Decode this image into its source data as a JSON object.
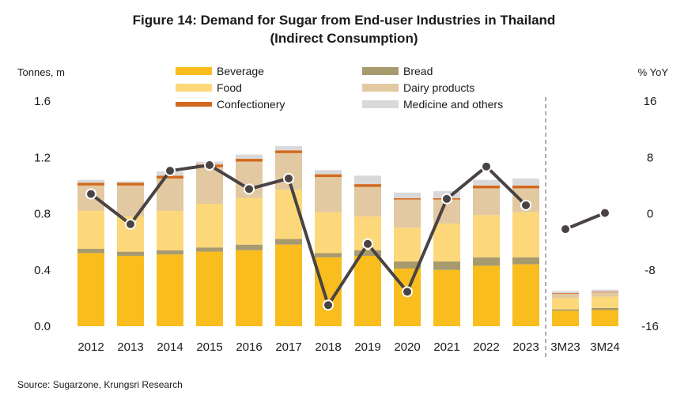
{
  "figure": {
    "title_line1": "Figure 14: Demand for Sugar from End-user Industries in Thailand",
    "title_line2": "(Indirect Consumption)",
    "source": "Source: Sugarzone, Krungsri Research"
  },
  "chart_data": {
    "type": "bar",
    "stacked": true,
    "categories": [
      "2012",
      "2013",
      "2014",
      "2015",
      "2016",
      "2017",
      "2018",
      "2019",
      "2020",
      "2021",
      "2022",
      "2023",
      "3M23",
      "3M24"
    ],
    "ylabel_left": "Tonnes, m",
    "ylabel_right": "% YoY",
    "ylim_left": [
      0,
      1.6
    ],
    "yticks_left": [
      "0.0",
      "0.4",
      "0.8",
      "1.2",
      "1.6"
    ],
    "ylim_right": [
      -16,
      16
    ],
    "yticks_right": [
      "-16",
      "-8",
      "0",
      "8",
      "16"
    ],
    "legend_placement": "top",
    "series": [
      {
        "name": "Beverage",
        "color": "#F9BE1E",
        "values": [
          0.52,
          0.5,
          0.51,
          0.53,
          0.54,
          0.58,
          0.49,
          0.5,
          0.41,
          0.4,
          0.43,
          0.44,
          0.11,
          0.115
        ]
      },
      {
        "name": "Bread",
        "color": "#A69A6E",
        "values": [
          0.03,
          0.03,
          0.03,
          0.03,
          0.04,
          0.04,
          0.03,
          0.04,
          0.05,
          0.06,
          0.06,
          0.05,
          0.01,
          0.015
        ]
      },
      {
        "name": "Food",
        "color": "#FDD87A",
        "values": [
          0.27,
          0.25,
          0.28,
          0.31,
          0.33,
          0.35,
          0.29,
          0.24,
          0.24,
          0.27,
          0.3,
          0.32,
          0.08,
          0.08
        ]
      },
      {
        "name": "Dairy products",
        "color": "#E2C9A2",
        "values": [
          0.18,
          0.22,
          0.23,
          0.26,
          0.26,
          0.26,
          0.25,
          0.21,
          0.2,
          0.17,
          0.19,
          0.17,
          0.03,
          0.03
        ]
      },
      {
        "name": "Confectionery",
        "color": "#D2691E",
        "values": [
          0.02,
          0.02,
          0.02,
          0.02,
          0.02,
          0.02,
          0.02,
          0.02,
          0.01,
          0.01,
          0.02,
          0.02,
          0.005,
          0.005
        ]
      },
      {
        "name": "Medicine and others",
        "color": "#D9D9D9",
        "values": [
          0.02,
          0.01,
          0.03,
          0.02,
          0.03,
          0.03,
          0.03,
          0.06,
          0.04,
          0.05,
          0.04,
          0.05,
          0.015,
          0.015
        ]
      }
    ],
    "yoy_line": {
      "color": "#4A4344",
      "axis": "right",
      "segments": [
        {
          "x": [
            "2012",
            "2013",
            "2014",
            "2015",
            "2016",
            "2017",
            "2018",
            "2019",
            "2020",
            "2021",
            "2022",
            "2023"
          ],
          "values": [
            2.8,
            -1.5,
            6.1,
            6.9,
            3.5,
            5.0,
            -13.0,
            -4.3,
            -11.1,
            2.1,
            6.7,
            1.2
          ]
        },
        {
          "x": [
            "3M23",
            "3M24"
          ],
          "values": [
            -2.2,
            0.1
          ]
        }
      ]
    },
    "divider_after": "2023"
  }
}
